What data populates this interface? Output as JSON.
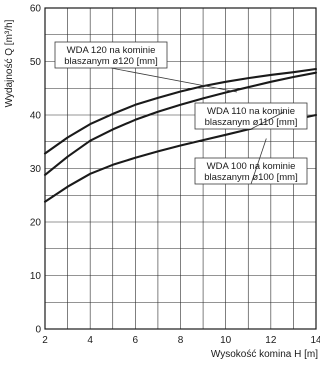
{
  "chart_data": {
    "type": "line",
    "title": "",
    "xlabel": "Wysokość komina H [m]",
    "ylabel": "Wydajność Q [m³/h]",
    "xlim": [
      2,
      14
    ],
    "ylim": [
      0,
      60
    ],
    "x_ticks": [
      2,
      4,
      6,
      8,
      10,
      12,
      14
    ],
    "y_ticks": [
      0,
      10,
      20,
      30,
      40,
      50,
      60
    ],
    "grid": "on (major and minor)",
    "series": [
      {
        "name": "WDA 120 na kominie blaszanym ø120 [mm]",
        "label_lines": [
          "WDA 120 na kominie",
          "blaszanym ø120 [mm]"
        ],
        "x": [
          2,
          3,
          4,
          5,
          6,
          7,
          8,
          9,
          10,
          11,
          12,
          13,
          14
        ],
        "y": [
          32.8,
          35.8,
          38.3,
          40.2,
          41.9,
          43.2,
          44.4,
          45.4,
          46.2,
          46.9,
          47.5,
          48.0,
          48.6
        ]
      },
      {
        "name": "WDA 110 na kominie blaszanym ø110 [mm]",
        "label_lines": [
          "WDA 110 na kominie",
          "blaszanym ø110 [mm]"
        ],
        "x": [
          2,
          3,
          4,
          5,
          6,
          7,
          8,
          9,
          10,
          11,
          12,
          13,
          14
        ],
        "y": [
          28.8,
          32.2,
          35.2,
          37.3,
          39.1,
          40.6,
          41.9,
          43.1,
          44.2,
          45.2,
          46.2,
          47.1,
          47.9
        ]
      },
      {
        "name": "WDA 100 na kominie blaszanym ø100 [mm]",
        "label_lines": [
          "WDA 100 na kominie",
          "blaszanym ø100 [mm]"
        ],
        "x": [
          2,
          3,
          4,
          5,
          6,
          7,
          8,
          9,
          10,
          11,
          12,
          13,
          14
        ],
        "y": [
          23.8,
          26.6,
          29.0,
          30.7,
          32.0,
          33.2,
          34.3,
          35.3,
          36.3,
          37.3,
          38.2,
          39.1,
          40.0
        ]
      }
    ]
  }
}
